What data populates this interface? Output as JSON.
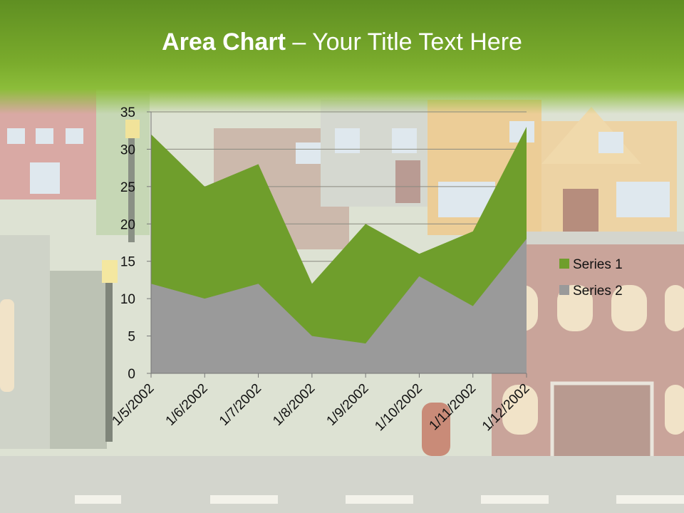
{
  "slide": {
    "title_bold": "Area Chart",
    "title_rest": " – Your Title Text Here"
  },
  "colors": {
    "header": "#7aab2c",
    "series1": "#6f9e2c",
    "series2": "#9a9a9a",
    "title_text": "#ffffff"
  },
  "chart_data": {
    "type": "area",
    "categories": [
      "1/5/2002",
      "1/6/2002",
      "1/7/2002",
      "1/8/2002",
      "1/9/2002",
      "1/10/2002",
      "1/11/2002",
      "1/12/2002"
    ],
    "series": [
      {
        "name": "Series 1",
        "values": [
          32,
          25,
          28,
          12,
          20,
          16,
          19,
          33
        ]
      },
      {
        "name": "Series 2",
        "values": [
          12,
          10,
          12,
          5,
          4,
          13,
          9,
          18
        ]
      }
    ],
    "ylim": [
      0,
      35
    ],
    "yticks": [
      0,
      5,
      10,
      15,
      20,
      25,
      30,
      35
    ],
    "grid": true,
    "legend": "right"
  }
}
